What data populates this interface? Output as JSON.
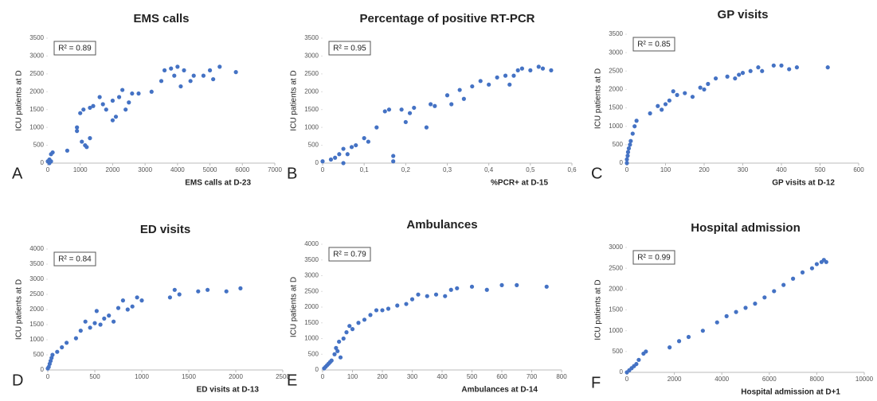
{
  "chart_data": [
    {
      "type": "scatter",
      "title": "EMS calls",
      "annotation": "R² = 0.89",
      "panel_label": "A",
      "xlabel": "EMS calls at D-23",
      "ylabel": "ICU patients at D",
      "color": "#4472c4",
      "x": [
        0,
        50,
        100,
        150,
        50,
        100,
        600,
        900,
        900,
        1000,
        1050,
        1100,
        1150,
        1200,
        1300,
        1300,
        1400,
        1600,
        1700,
        1800,
        2000,
        2000,
        2100,
        2200,
        2300,
        2400,
        2500,
        2600,
        2800,
        3200,
        3500,
        3600,
        3800,
        3900,
        4000,
        4100,
        4200,
        4400,
        4500,
        4800,
        5000,
        5100,
        5300,
        5800
      ],
      "y": [
        50,
        100,
        250,
        300,
        0,
        50,
        350,
        1000,
        900,
        1400,
        600,
        1500,
        500,
        450,
        700,
        1550,
        1600,
        1850,
        1650,
        1500,
        1750,
        1200,
        1300,
        1850,
        2050,
        1500,
        1700,
        1950,
        1950,
        2000,
        2300,
        2600,
        2650,
        2450,
        2700,
        2150,
        2600,
        2300,
        2450,
        2450,
        2600,
        2350,
        2700,
        2550
      ],
      "xlim": [
        0,
        7000
      ],
      "ylim": [
        0,
        3500
      ],
      "xticks": [
        0,
        1000,
        2000,
        3000,
        4000,
        5000,
        6000,
        7000
      ],
      "yticks": [
        0,
        500,
        1000,
        1500,
        2000,
        2500,
        3000,
        3500
      ]
    },
    {
      "type": "scatter",
      "title": "Percentage of positive RT-PCR",
      "annotation": "R² = 0.95",
      "panel_label": "B",
      "xlabel": "%PCR+ at D-15",
      "ylabel": "ICU patients at D",
      "color": "#4472c4",
      "x": [
        0,
        0.02,
        0.03,
        0.04,
        0.05,
        0.05,
        0.06,
        0.07,
        0.08,
        0.1,
        0.11,
        0.13,
        0.15,
        0.16,
        0.17,
        0.17,
        0.19,
        0.2,
        0.21,
        0.22,
        0.25,
        0.26,
        0.27,
        0.3,
        0.31,
        0.33,
        0.34,
        0.36,
        0.38,
        0.4,
        0.42,
        0.44,
        0.45,
        0.46,
        0.47,
        0.48,
        0.5,
        0.52,
        0.53,
        0.55
      ],
      "y": [
        50,
        100,
        150,
        250,
        400,
        0,
        250,
        450,
        500,
        700,
        600,
        1000,
        1450,
        1500,
        200,
        50,
        1500,
        1150,
        1400,
        1550,
        1000,
        1650,
        1600,
        1900,
        1650,
        2050,
        1800,
        2150,
        2300,
        2200,
        2400,
        2450,
        2200,
        2450,
        2600,
        2650,
        2600,
        2700,
        2650,
        2600
      ],
      "xlim": [
        0,
        0.6
      ],
      "ylim": [
        0,
        3500
      ],
      "xticks": [
        0,
        {
          "value": 0.1,
          "label": "0,1"
        },
        {
          "value": 0.2,
          "label": "0,2"
        },
        {
          "value": 0.3,
          "label": "0,3"
        },
        {
          "value": 0.4,
          "label": "0,4"
        },
        {
          "value": 0.5,
          "label": "0,5"
        },
        {
          "value": 0.6,
          "label": "0,6"
        }
      ],
      "yticks": [
        0,
        500,
        1000,
        1500,
        2000,
        2500,
        3000,
        3500
      ]
    },
    {
      "type": "scatter",
      "title": "GP visits",
      "annotation": "R² = 0.85",
      "panel_label": "C",
      "xlabel": "GP visits at D-12",
      "ylabel": "ICU patients at D",
      "color": "#4472c4",
      "x": [
        0,
        0,
        2,
        3,
        5,
        8,
        10,
        15,
        20,
        25,
        60,
        80,
        90,
        100,
        110,
        120,
        130,
        150,
        170,
        190,
        200,
        210,
        230,
        260,
        280,
        290,
        300,
        320,
        340,
        350,
        380,
        400,
        420,
        440,
        520
      ],
      "y": [
        0,
        100,
        200,
        300,
        400,
        500,
        600,
        800,
        1000,
        1150,
        1350,
        1550,
        1450,
        1600,
        1700,
        1950,
        1850,
        1900,
        1800,
        2050,
        2000,
        2150,
        2300,
        2350,
        2300,
        2400,
        2450,
        2500,
        2600,
        2500,
        2650,
        2650,
        2550,
        2600,
        2600
      ],
      "xlim": [
        0,
        600
      ],
      "ylim": [
        0,
        3500
      ],
      "xticks": [
        0,
        100,
        200,
        300,
        400,
        500,
        600
      ],
      "yticks": [
        0,
        500,
        1000,
        1500,
        2000,
        2500,
        3000,
        3500
      ]
    },
    {
      "type": "scatter",
      "title": "ED visits",
      "annotation": "R² = 0.84",
      "panel_label": "D",
      "xlabel": "ED visits at D-13",
      "ylabel": "ICU patients at D",
      "color": "#4472c4",
      "x": [
        0,
        10,
        20,
        30,
        40,
        50,
        100,
        150,
        200,
        300,
        350,
        400,
        450,
        500,
        520,
        560,
        600,
        650,
        700,
        750,
        800,
        850,
        900,
        950,
        1000,
        1300,
        1350,
        1400,
        1600,
        1700,
        1900,
        2050
      ],
      "y": [
        50,
        100,
        200,
        300,
        400,
        500,
        600,
        750,
        900,
        1050,
        1300,
        1600,
        1400,
        1550,
        1950,
        1500,
        1700,
        1800,
        1600,
        2050,
        2300,
        2000,
        2100,
        2400,
        2300,
        2400,
        2650,
        2500,
        2600,
        2650,
        2600,
        2700
      ],
      "xlim": [
        0,
        2500
      ],
      "ylim": [
        0,
        4000
      ],
      "xticks": [
        0,
        500,
        1000,
        1500,
        2000,
        2500
      ],
      "yticks": [
        0,
        500,
        1000,
        1500,
        2000,
        2500,
        3000,
        3500,
        4000
      ]
    },
    {
      "type": "scatter",
      "title": "Ambulances",
      "annotation": "R² = 0.79",
      "panel_label": "E",
      "xlabel": "Ambulances at D-14",
      "ylabel": "ICU patients at D",
      "color": "#4472c4",
      "x": [
        5,
        10,
        15,
        20,
        25,
        30,
        40,
        45,
        50,
        55,
        60,
        70,
        80,
        90,
        100,
        120,
        140,
        160,
        180,
        200,
        220,
        250,
        280,
        300,
        320,
        350,
        380,
        410,
        430,
        450,
        500,
        550,
        600,
        650,
        750
      ],
      "y": [
        50,
        100,
        150,
        200,
        250,
        300,
        500,
        700,
        600,
        900,
        400,
        1000,
        1200,
        1400,
        1300,
        1500,
        1600,
        1750,
        1900,
        1900,
        1950,
        2050,
        2100,
        2250,
        2400,
        2350,
        2400,
        2350,
        2550,
        2600,
        2650,
        2550,
        2700,
        2700,
        2650
      ],
      "xlim": [
        0,
        800
      ],
      "ylim": [
        0,
        4000
      ],
      "xticks": [
        0,
        100,
        200,
        300,
        400,
        500,
        600,
        700,
        800
      ],
      "yticks": [
        0,
        500,
        1000,
        1500,
        2000,
        2500,
        3000,
        3500,
        4000
      ]
    },
    {
      "type": "scatter",
      "title": "Hospital admission",
      "annotation": "R² = 0.99",
      "panel_label": "F",
      "xlabel": "Hospital admission at D+1",
      "ylabel": "ICU patients at D",
      "color": "#4472c4",
      "x": [
        0,
        100,
        200,
        300,
        400,
        500,
        700,
        800,
        1800,
        2200,
        2600,
        3200,
        3800,
        4200,
        4600,
        5000,
        5400,
        5800,
        6200,
        6600,
        7000,
        7400,
        7800,
        8000,
        8200,
        8300,
        8400
      ],
      "y": [
        0,
        50,
        100,
        150,
        200,
        300,
        450,
        500,
        600,
        750,
        850,
        1000,
        1200,
        1350,
        1450,
        1550,
        1650,
        1800,
        1950,
        2100,
        2250,
        2400,
        2500,
        2600,
        2650,
        2700,
        2650
      ],
      "xlim": [
        0,
        10000
      ],
      "ylim": [
        0,
        3000
      ],
      "xticks": [
        0,
        2000,
        4000,
        6000,
        8000,
        10000
      ],
      "yticks": [
        0,
        500,
        1000,
        1500,
        2000,
        2500,
        3000
      ]
    }
  ]
}
